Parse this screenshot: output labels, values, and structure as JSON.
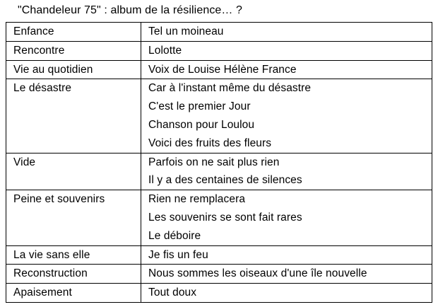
{
  "title": "\"Chandeleur 75\" : album de la résilience… ?",
  "colors": {
    "text": "#000000",
    "border": "#000000",
    "background": "#ffffff"
  },
  "table": {
    "columns": [
      "theme",
      "songs"
    ],
    "rows": [
      {
        "theme": "Enfance",
        "songs": [
          "Tel un moineau"
        ]
      },
      {
        "theme": "Rencontre",
        "songs": [
          "Lolotte"
        ]
      },
      {
        "theme": "Vie au quotidien",
        "songs": [
          "Voix de Louise Hélène France"
        ]
      },
      {
        "theme": "Le désastre",
        "songs": [
          "Car à l'instant même du désastre",
          "C'est le premier Jour",
          "Chanson pour Loulou",
          "Voici des fruits des fleurs"
        ]
      },
      {
        "theme": "Vide",
        "songs": [
          "Parfois on ne sait plus rien",
          "Il y a des centaines de silences"
        ]
      },
      {
        "theme": "Peine et souvenirs",
        "songs": [
          "Rien ne remplacera",
          "Les souvenirs se sont fait rares",
          "Le déboire"
        ]
      },
      {
        "theme": "La vie sans elle",
        "songs": [
          "Je fis un feu"
        ]
      },
      {
        "theme": "Reconstruction",
        "songs": [
          "Nous sommes les oiseaux d'une île nouvelle"
        ]
      },
      {
        "theme": "Apaisement",
        "songs": [
          "Tout doux"
        ]
      }
    ]
  }
}
